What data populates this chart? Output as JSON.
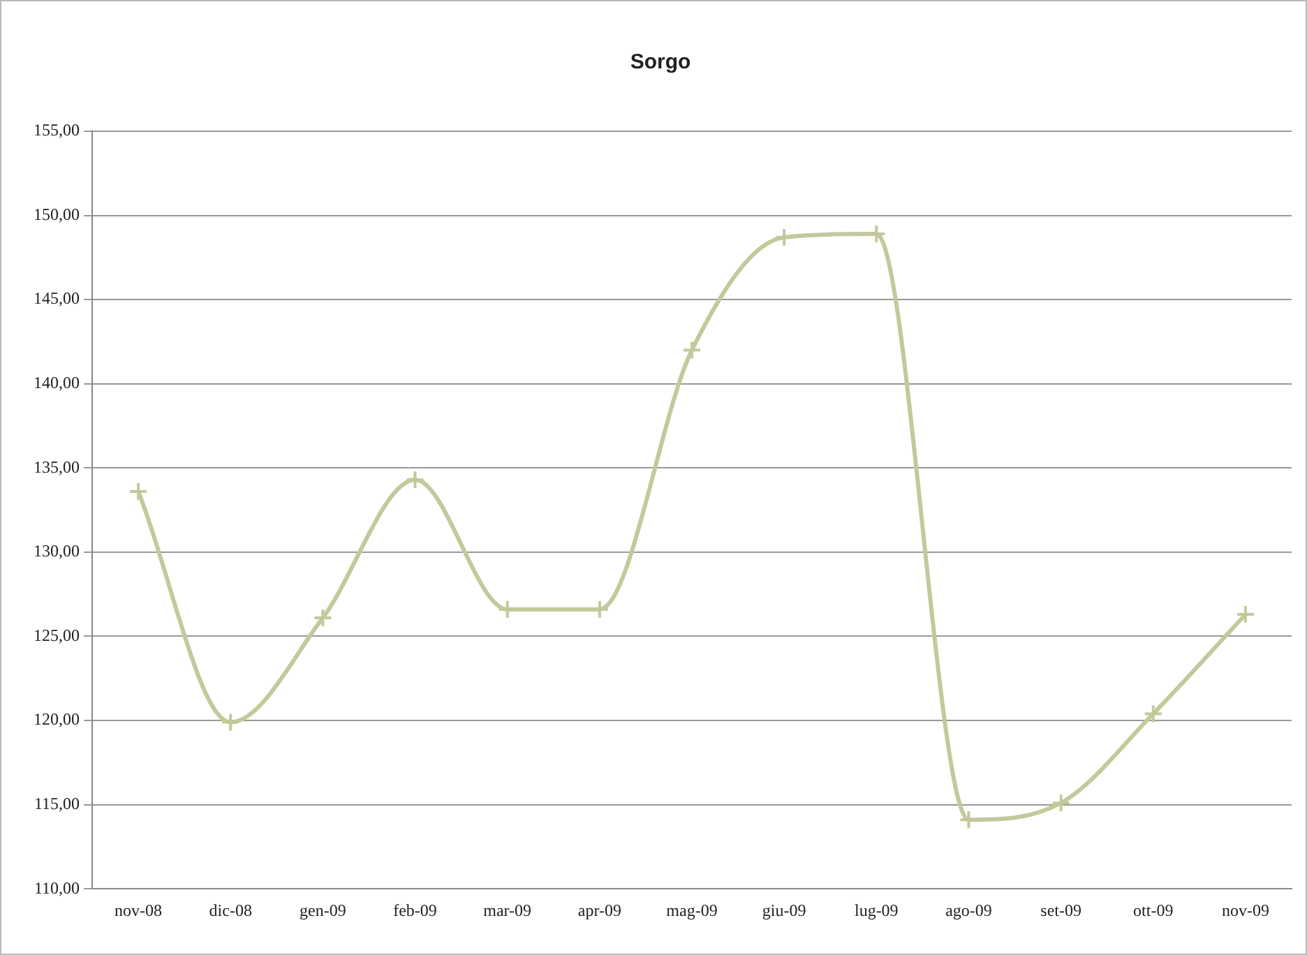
{
  "chart_data": {
    "type": "line",
    "title": "Sorgo",
    "categories": [
      "nov-08",
      "dic-08",
      "gen-09",
      "feb-09",
      "mar-09",
      "apr-09",
      "mag-09",
      "giu-09",
      "lug-09",
      "ago-09",
      "set-09",
      "ott-09",
      "nov-09"
    ],
    "series": [
      {
        "color": "#c4c89b",
        "values": [
          133.6,
          119.9,
          126.1,
          134.3,
          126.6,
          126.6,
          142.0,
          148.7,
          148.9,
          114.1,
          115.1,
          120.4,
          126.3
        ]
      }
    ],
    "ylim": [
      110,
      155
    ],
    "yticks": [
      {
        "value": 110,
        "label": "110,00"
      },
      {
        "value": 115,
        "label": "115,00"
      },
      {
        "value": 120,
        "label": "120,00"
      },
      {
        "value": 125,
        "label": "125,00"
      },
      {
        "value": 130,
        "label": "130,00"
      },
      {
        "value": 135,
        "label": "135,00"
      },
      {
        "value": 140,
        "label": "140,00"
      },
      {
        "value": 145,
        "label": "145,00"
      },
      {
        "value": 150,
        "label": "150,00"
      },
      {
        "value": 155,
        "label": "155,00"
      }
    ],
    "grid": "y",
    "legend": false,
    "marker": "cross",
    "line_style": "solid"
  }
}
